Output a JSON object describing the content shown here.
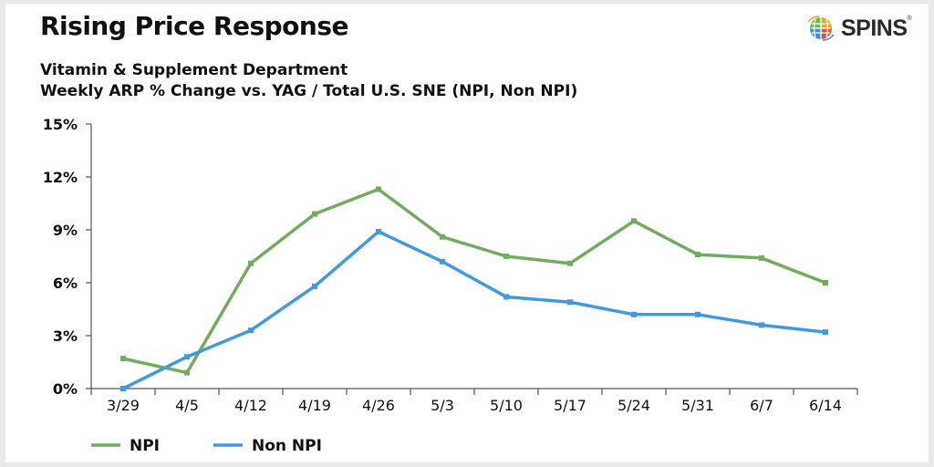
{
  "header": {
    "title": "Rising Price Response",
    "subtitle_line1": "Vitamin & Supplement Department",
    "subtitle_line2": "Weekly ARP % Change vs. YAG / Total U.S. SNE (NPI, Non NPI)",
    "logo_text": "SPINS",
    "logo_mark": "®"
  },
  "chart_data": {
    "type": "line",
    "categories": [
      "3/29",
      "4/5",
      "4/12",
      "4/19",
      "4/26",
      "5/3",
      "5/10",
      "5/17",
      "5/24",
      "5/31",
      "6/7",
      "6/14"
    ],
    "series": [
      {
        "name": "NPI",
        "color": "#72ad5f",
        "values": [
          1.7,
          0.9,
          7.1,
          9.9,
          11.3,
          8.6,
          7.5,
          7.1,
          9.5,
          7.6,
          7.4,
          6.0
        ]
      },
      {
        "name": "Non NPI",
        "color": "#419ae0",
        "values": [
          0.0,
          1.8,
          3.3,
          5.8,
          8.9,
          7.2,
          5.2,
          4.9,
          4.2,
          4.2,
          3.6,
          3.2
        ]
      }
    ],
    "yticks": [
      "0%",
      "3%",
      "6%",
      "9%",
      "12%",
      "15%"
    ],
    "ytick_values": [
      0,
      3,
      6,
      9,
      12,
      15
    ],
    "ylim": [
      0,
      15
    ],
    "legend_position": "bottom-left",
    "grid": false
  }
}
